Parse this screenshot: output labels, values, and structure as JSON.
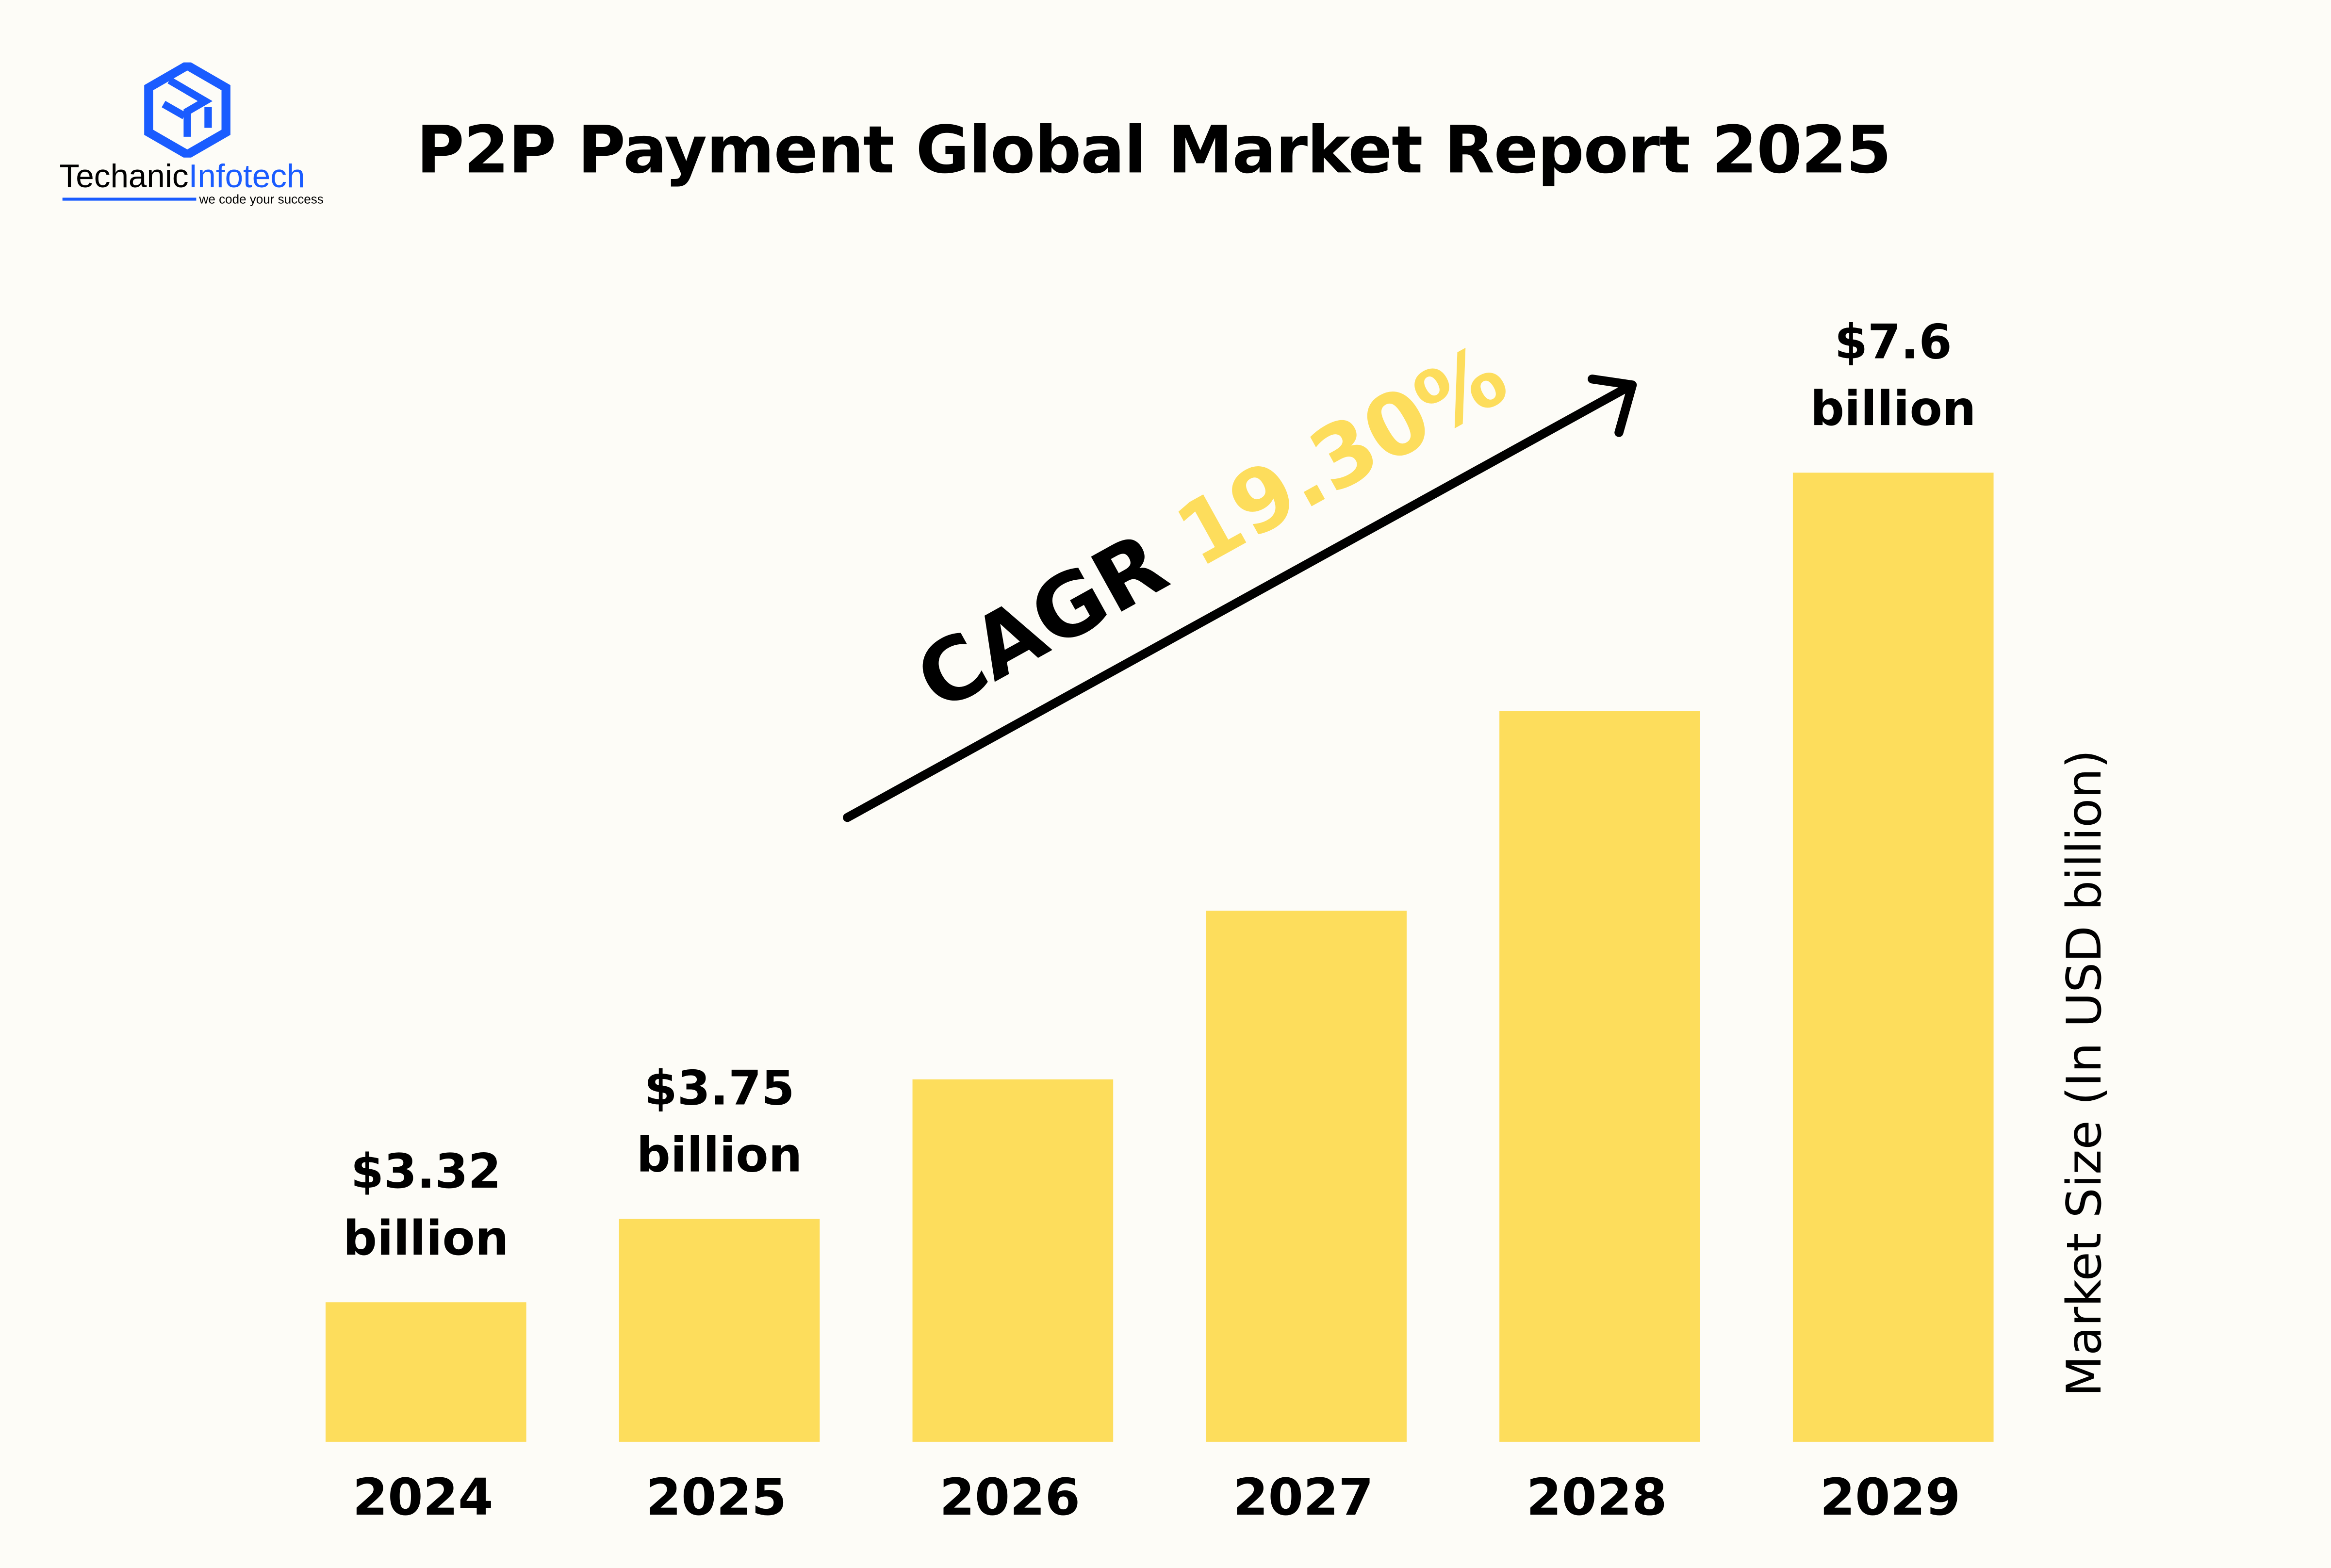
{
  "title": "P2P Payment Global Market Report 2025",
  "logo": {
    "part1": "Techanic",
    "part2": "Infotech",
    "tagline": "we code your success",
    "color": "#1a5cff"
  },
  "chart_data": {
    "type": "bar",
    "title": "P2P Payment Global Market Report 2025",
    "categories": [
      "2024",
      "2025",
      "2026",
      "2027",
      "2028",
      "2029"
    ],
    "values": [
      3.32,
      3.75,
      4.47,
      5.34,
      6.37,
      7.6
    ],
    "data_labels": [
      {
        "category": "2024",
        "line1": "$3.32",
        "line2": "billion"
      },
      {
        "category": "2025",
        "line1": "$3.75",
        "line2": "billion"
      },
      {
        "category": "2029",
        "line1": "$7.6",
        "line2": "billion"
      }
    ],
    "xlabel": "",
    "ylabel": "Market Size (In USD billion)",
    "ylim": [
      2.6,
      7.6
    ],
    "grid": false,
    "bar_color": "#fddd5c",
    "annotation": {
      "label": "CAGR",
      "value": "19.30%",
      "value_color": "#fddd5c",
      "arrow": "up-right"
    }
  }
}
